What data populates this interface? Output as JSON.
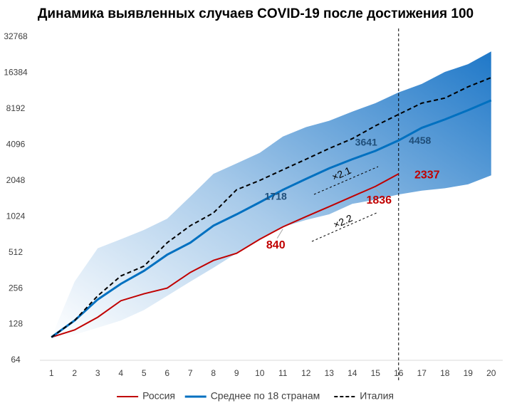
{
  "chart_data": {
    "type": "line",
    "title": "Динамика выявленных случаев COVID-19 после достижения 100",
    "x": [
      1,
      2,
      3,
      4,
      5,
      6,
      7,
      8,
      9,
      10,
      11,
      12,
      13,
      14,
      15,
      16,
      17,
      18,
      19,
      20
    ],
    "xlim": [
      0.5,
      20.5
    ],
    "ylim": [
      64,
      32768
    ],
    "log_base": 2,
    "yticks": [
      64,
      128,
      256,
      512,
      1024,
      2048,
      4096,
      8192,
      16384,
      32768
    ],
    "band": {
      "color": "#1f78c8",
      "lower": [
        100,
        105,
        120,
        138,
        169,
        222,
        292,
        382,
        505,
        662,
        840,
        960,
        1070,
        1310,
        1420,
        1570,
        1690,
        1770,
        1910,
        2270
      ],
      "upper": [
        100,
        292,
        556,
        662,
        792,
        984,
        1510,
        2337,
        2860,
        3510,
        4800,
        5760,
        6510,
        7770,
        9150,
        11250,
        13260,
        16700,
        19400,
        24800
      ]
    },
    "series": [
      {
        "name": "Россия",
        "color": "#c00000",
        "dash": false,
        "values": [
          100,
          115,
          147,
          202,
          231,
          258,
          349,
          440,
          505,
          662,
          840,
          1024,
          1242,
          1510,
          1836,
          2337,
          null,
          null,
          null,
          null
        ],
        "value_labels": [
          null,
          null,
          null,
          null,
          null,
          null,
          null,
          null,
          null,
          null,
          "840",
          null,
          null,
          null,
          "1836",
          "2337",
          null,
          null,
          null,
          null
        ]
      },
      {
        "name": "Среднее по 18 странам",
        "color": "#0070c0",
        "dash": false,
        "values": [
          100,
          138,
          207,
          280,
          360,
          491,
          619,
          860,
          1070,
          1350,
          1718,
          2120,
          2600,
          3100,
          3641,
          4458,
          5680,
          6680,
          7980,
          9660
        ],
        "value_labels": [
          null,
          null,
          null,
          null,
          null,
          null,
          null,
          null,
          null,
          null,
          "1718",
          null,
          null,
          null,
          "3641",
          "4458",
          null,
          null,
          null,
          null
        ]
      },
      {
        "name": "Италия",
        "color": "#000000",
        "dash": true,
        "values": [
          100,
          138,
          222,
          326,
          394,
          619,
          860,
          1100,
          1720,
          2060,
          2530,
          3100,
          3815,
          4610,
          5910,
          7360,
          9150,
          10090,
          12540,
          14980
        ]
      }
    ],
    "vline": 16,
    "annotations": [
      {
        "text": "×2.1"
      },
      {
        "text": "×2.2"
      }
    ],
    "legend": "bottom"
  }
}
